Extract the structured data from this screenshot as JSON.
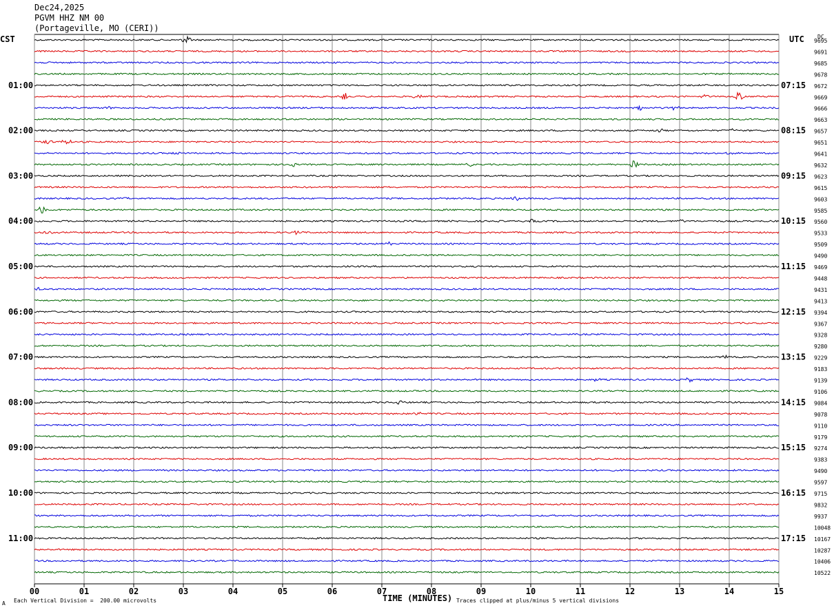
{
  "header": {
    "date": "Dec24,2025",
    "station": "PGVM HHZ NM 00",
    "location": "(Portageville, MO (CERI))"
  },
  "labels": {
    "left_tz": "CST",
    "right_tz": "UTC",
    "dc": "DC",
    "xlabel": "TIME (MINUTES)",
    "footer_left": "Each Vertical Division =  200.00 microvolts",
    "footer_right": "Traces clipped at plus/minus 5 vertical divisions",
    "corner_mark": "A"
  },
  "chart_data": {
    "type": "line",
    "title": "PGVM HHZ NM 00 (Portageville, MO (CERI))",
    "xlabel": "TIME (MINUTES)",
    "xlim": [
      0,
      15
    ],
    "x_ticks": [
      "00",
      "01",
      "02",
      "03",
      "04",
      "05",
      "06",
      "07",
      "08",
      "09",
      "10",
      "11",
      "12",
      "13",
      "14",
      "15"
    ],
    "trace_colors": [
      "#000000",
      "#dd0000",
      "#0000dd",
      "#006600"
    ],
    "rows_per_hour": 4,
    "left_hour_labels": [
      "01:00",
      "02:00",
      "03:00",
      "04:00",
      "05:00",
      "06:00",
      "07:00",
      "08:00",
      "09:00",
      "10:00",
      "11:00"
    ],
    "right_hour_labels": [
      "07:15",
      "08:15",
      "09:15",
      "10:15",
      "11:15",
      "12:15",
      "13:15",
      "14:15",
      "15:15",
      "16:15",
      "17:15"
    ],
    "dc_offsets": [
      "9695",
      "9691",
      "9685",
      "9678",
      "9672",
      "9669",
      "9666",
      "9663",
      "9657",
      "9651",
      "9641",
      "9632",
      "9623",
      "9615",
      "9603",
      "9585",
      "9560",
      "9533",
      "9509",
      "9490",
      "9469",
      "9448",
      "9431",
      "9413",
      "9394",
      "9367",
      "9328",
      "9280",
      "9229",
      "9183",
      "9139",
      "9106",
      "9084",
      "9078",
      "9110",
      "9179",
      "9274",
      "9383",
      "9490",
      "9597",
      "9715",
      "9832",
      "9937",
      "10048",
      "10167",
      "10287",
      "10406",
      "10522"
    ],
    "events": [
      {
        "row": 0,
        "minute": 3.05,
        "amp": 6
      },
      {
        "row": 5,
        "minute": 6.25,
        "amp": 5
      },
      {
        "row": 5,
        "minute": 7.75,
        "amp": 8
      },
      {
        "row": 5,
        "minute": 13.5,
        "amp": 3
      },
      {
        "row": 5,
        "minute": 14.2,
        "amp": 7
      },
      {
        "row": 6,
        "minute": 1.5,
        "amp": 3
      },
      {
        "row": 6,
        "minute": 12.2,
        "amp": 4
      },
      {
        "row": 6,
        "minute": 12.9,
        "amp": 3
      },
      {
        "row": 8,
        "minute": 12.6,
        "amp": 3
      },
      {
        "row": 8,
        "minute": 14.1,
        "amp": 3
      },
      {
        "row": 9,
        "minute": 0.25,
        "amp": 4
      },
      {
        "row": 9,
        "minute": 0.65,
        "amp": 4
      },
      {
        "row": 10,
        "minute": 2.9,
        "amp": 3
      },
      {
        "row": 10,
        "minute": 14.0,
        "amp": 3
      },
      {
        "row": 11,
        "minute": 5.2,
        "amp": 3
      },
      {
        "row": 11,
        "minute": 8.8,
        "amp": 3
      },
      {
        "row": 11,
        "minute": 12.1,
        "amp": 7
      },
      {
        "row": 14,
        "minute": 1.85,
        "amp": 3
      },
      {
        "row": 14,
        "minute": 9.7,
        "amp": 4
      },
      {
        "row": 15,
        "minute": 0.15,
        "amp": 6
      },
      {
        "row": 16,
        "minute": 10.0,
        "amp": 3
      },
      {
        "row": 16,
        "minute": 13.0,
        "amp": 3
      },
      {
        "row": 17,
        "minute": 0.25,
        "amp": 3
      },
      {
        "row": 17,
        "minute": 5.3,
        "amp": 3
      },
      {
        "row": 18,
        "minute": 7.1,
        "amp": 3
      },
      {
        "row": 22,
        "minute": 0.1,
        "amp": 3
      },
      {
        "row": 28,
        "minute": 13.9,
        "amp": 3
      },
      {
        "row": 30,
        "minute": 11.3,
        "amp": 3
      },
      {
        "row": 30,
        "minute": 13.2,
        "amp": 3
      },
      {
        "row": 32,
        "minute": 7.35,
        "amp": 3
      },
      {
        "row": 33,
        "minute": 7.75,
        "amp": 3
      }
    ]
  }
}
